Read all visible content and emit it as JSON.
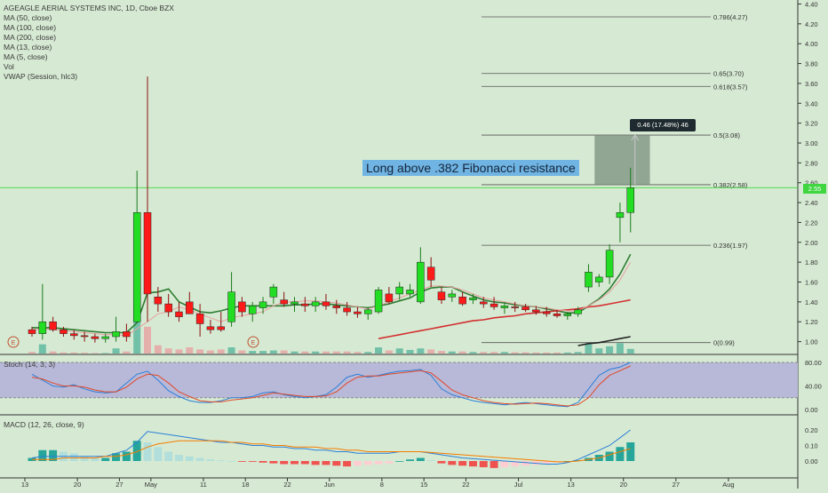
{
  "legend": {
    "title": "AGEAGLE AERIAL SYSTEMS INC, 1D, Cboe BZX",
    "lines": [
      "MA (50, close)",
      "MA (100, close)",
      "MA (200, close)",
      "MA (13, close)",
      "MA (5, close)",
      "Vol",
      "VWAP (Session, hlc3)"
    ]
  },
  "annotation": "Long above .382 Fibonacci resistance",
  "measure_label": "0.46 (17.48%) 46",
  "current_price_label": "2.55",
  "earnings_marker": "E",
  "stoch_label": "Stoch (14, 3, 3)",
  "macd_label": "MACD (12, 26, close, 9)",
  "colors": {
    "background": "#d6ead3",
    "up": "#22dd22",
    "down": "#ff1a1a",
    "ma_green": "#2e7d32",
    "ma_red": "#d32f2f",
    "stoch_band": "#b8b8d8"
  },
  "chart_data": [
    {
      "type": "candlestick",
      "title": "AGEAGLE AERIAL SYSTEMS INC, 1D, Cboe BZX",
      "y_ticks": [
        "4.40",
        "4.20",
        "4.00",
        "3.80",
        "3.60",
        "3.40",
        "3.20",
        "3.00",
        "2.80",
        "2.60",
        "2.40",
        "2.20",
        "2.00",
        "1.80",
        "1.60",
        "1.40",
        "1.20",
        "1.00"
      ],
      "ylim": [
        0.88,
        4.44
      ],
      "x_ticks": [
        "13",
        "20",
        "27",
        "May",
        "11",
        "18",
        "22",
        "Jun",
        "8",
        "15",
        "22",
        "Jul",
        "13",
        "20",
        "27",
        "Aug"
      ],
      "x_tick_index": [
        0,
        5,
        9,
        12,
        17,
        21,
        25,
        29,
        34,
        38,
        42,
        47,
        52,
        57,
        62,
        67
      ],
      "fibonacci": [
        {
          "label": "0.786(4.27)",
          "value": 4.27
        },
        {
          "label": "0.65(3.70)",
          "value": 3.7
        },
        {
          "label": "0.618(3.57)",
          "value": 3.57
        },
        {
          "label": "0.5(3.08)",
          "value": 3.08
        },
        {
          "label": "0.382(2.58)",
          "value": 2.58
        },
        {
          "label": "0.236(1.97)",
          "value": 1.97
        },
        {
          "label": "0(0.99)",
          "value": 0.99
        }
      ],
      "candles": [
        [
          1.12,
          1.15,
          1.05,
          1.08
        ],
        [
          1.08,
          1.58,
          1.02,
          1.2
        ],
        [
          1.2,
          1.25,
          1.1,
          1.12
        ],
        [
          1.12,
          1.15,
          1.05,
          1.08
        ],
        [
          1.08,
          1.12,
          1.02,
          1.06
        ],
        [
          1.06,
          1.1,
          1.0,
          1.05
        ],
        [
          1.05,
          1.08,
          0.99,
          1.03
        ],
        [
          1.03,
          1.08,
          0.99,
          1.05
        ],
        [
          1.05,
          1.25,
          1.0,
          1.1
        ],
        [
          1.1,
          1.18,
          1.0,
          1.05
        ],
        [
          1.2,
          2.72,
          1.2,
          2.3
        ],
        [
          2.3,
          3.67,
          1.2,
          1.48
        ],
        [
          1.45,
          1.55,
          1.3,
          1.38
        ],
        [
          1.38,
          1.48,
          1.25,
          1.3
        ],
        [
          1.3,
          1.4,
          1.2,
          1.25
        ],
        [
          1.4,
          1.5,
          1.3,
          1.28
        ],
        [
          1.28,
          1.38,
          1.05,
          1.18
        ],
        [
          1.15,
          1.22,
          1.08,
          1.12
        ],
        [
          1.15,
          1.3,
          1.1,
          1.12
        ],
        [
          1.2,
          1.7,
          1.15,
          1.5
        ],
        [
          1.4,
          1.45,
          1.25,
          1.3
        ],
        [
          1.28,
          1.4,
          1.2,
          1.36
        ],
        [
          1.34,
          1.45,
          1.28,
          1.4
        ],
        [
          1.45,
          1.58,
          1.38,
          1.55
        ],
        [
          1.42,
          1.5,
          1.35,
          1.38
        ],
        [
          1.38,
          1.45,
          1.3,
          1.4
        ],
        [
          1.38,
          1.45,
          1.3,
          1.36
        ],
        [
          1.36,
          1.45,
          1.3,
          1.4
        ],
        [
          1.4,
          1.48,
          1.32,
          1.36
        ],
        [
          1.36,
          1.42,
          1.28,
          1.34
        ],
        [
          1.34,
          1.4,
          1.26,
          1.3
        ],
        [
          1.3,
          1.35,
          1.24,
          1.28
        ],
        [
          1.28,
          1.35,
          1.22,
          1.32
        ],
        [
          1.3,
          1.55,
          1.28,
          1.52
        ],
        [
          1.48,
          1.55,
          1.38,
          1.4
        ],
        [
          1.48,
          1.6,
          1.42,
          1.55
        ],
        [
          1.48,
          1.58,
          1.45,
          1.52
        ],
        [
          1.4,
          1.95,
          1.38,
          1.8
        ],
        [
          1.75,
          1.85,
          1.55,
          1.62
        ],
        [
          1.5,
          1.55,
          1.38,
          1.42
        ],
        [
          1.45,
          1.52,
          1.4,
          1.48
        ],
        [
          1.45,
          1.5,
          1.36,
          1.38
        ],
        [
          1.42,
          1.48,
          1.38,
          1.44
        ],
        [
          1.4,
          1.45,
          1.34,
          1.38
        ],
        [
          1.38,
          1.45,
          1.32,
          1.35
        ],
        [
          1.34,
          1.4,
          1.28,
          1.36
        ],
        [
          1.35,
          1.4,
          1.3,
          1.34
        ],
        [
          1.35,
          1.38,
          1.3,
          1.32
        ],
        [
          1.32,
          1.36,
          1.27,
          1.3
        ],
        [
          1.3,
          1.35,
          1.25,
          1.28
        ],
        [
          1.28,
          1.32,
          1.24,
          1.26
        ],
        [
          1.26,
          1.3,
          1.22,
          1.28
        ],
        [
          1.28,
          1.35,
          1.25,
          1.32
        ],
        [
          1.55,
          1.78,
          1.5,
          1.7
        ],
        [
          1.6,
          1.68,
          1.55,
          1.65
        ],
        [
          1.65,
          1.98,
          1.58,
          1.92
        ],
        [
          2.25,
          2.4,
          2.0,
          2.3
        ],
        [
          2.3,
          2.75,
          2.1,
          2.55
        ]
      ],
      "volume": [
        0.15,
        0.9,
        0.2,
        0.1,
        0.1,
        0.08,
        0.05,
        0.05,
        0.5,
        0.2,
        5.0,
        2.6,
        0.8,
        0.5,
        0.4,
        0.6,
        0.4,
        0.3,
        0.4,
        0.6,
        0.3,
        0.25,
        0.25,
        0.3,
        0.3,
        0.2,
        0.2,
        0.2,
        0.2,
        0.2,
        0.2,
        0.15,
        0.15,
        0.6,
        0.3,
        0.5,
        0.35,
        0.5,
        0.4,
        0.25,
        0.2,
        0.2,
        0.15,
        0.15,
        0.15,
        0.15,
        0.12,
        0.12,
        0.1,
        0.1,
        0.1,
        0.1,
        0.15,
        1.0,
        0.5,
        0.7,
        1.0,
        0.45
      ],
      "earnings_marker_index": [
        1,
        19
      ],
      "series": [
        {
          "name": "MA (13, close)",
          "values": [
            1.14,
            1.14,
            1.14,
            1.13,
            1.12,
            1.11,
            1.1,
            1.09,
            1.09,
            1.09,
            1.19,
            1.49,
            1.5,
            1.53,
            1.4,
            1.35,
            1.3,
            1.29,
            1.31,
            1.34,
            1.36,
            1.36,
            1.36,
            1.36,
            1.36,
            1.37,
            1.37,
            1.38,
            1.38,
            1.37,
            1.36,
            1.35,
            1.34,
            1.36,
            1.38,
            1.41,
            1.44,
            1.5,
            1.54,
            1.55,
            1.55,
            1.5,
            1.46,
            1.42,
            1.4,
            1.39,
            1.37,
            1.36,
            1.35,
            1.33,
            1.31,
            1.29,
            1.29,
            1.36,
            1.43,
            1.53,
            1.68,
            1.88
          ]
        },
        {
          "name": "MA (50, close)",
          "values": [
            null,
            null,
            null,
            null,
            null,
            null,
            null,
            null,
            null,
            null,
            null,
            null,
            null,
            null,
            null,
            null,
            null,
            null,
            null,
            null,
            null,
            null,
            null,
            null,
            null,
            null,
            null,
            null,
            null,
            null,
            null,
            null,
            null,
            1.03,
            1.05,
            1.07,
            1.09,
            1.11,
            1.13,
            1.15,
            1.17,
            1.19,
            1.21,
            1.22,
            1.24,
            1.25,
            1.26,
            1.28,
            1.29,
            1.3,
            1.31,
            1.32,
            1.33,
            1.35,
            1.36,
            1.38,
            1.4,
            1.42
          ]
        },
        {
          "name": "MA (100, close)",
          "values": [
            null,
            null,
            null,
            null,
            null,
            null,
            null,
            null,
            null,
            null,
            null,
            null,
            null,
            null,
            null,
            null,
            null,
            null,
            null,
            null,
            null,
            null,
            null,
            null,
            null,
            null,
            null,
            null,
            null,
            null,
            null,
            null,
            null,
            null,
            null,
            null,
            null,
            null,
            null,
            null,
            null,
            null,
            null,
            null,
            null,
            null,
            null,
            null,
            null,
            null,
            null,
            null,
            0.96,
            0.98,
            0.99,
            1.01,
            1.03,
            1.05
          ]
        },
        {
          "name": "MA (5, close)",
          "values": [
            1.12,
            1.13,
            1.12,
            1.11,
            1.1,
            1.09,
            1.08,
            1.07,
            1.07,
            1.06,
            1.13,
            1.2,
            1.28,
            1.3,
            1.35,
            1.32,
            1.28,
            1.24,
            1.2,
            1.24,
            1.26,
            1.28,
            1.3,
            1.36,
            1.4,
            1.4,
            1.41,
            1.41,
            1.4,
            1.39,
            1.37,
            1.35,
            1.33,
            1.36,
            1.4,
            1.44,
            1.48,
            1.52,
            1.56,
            1.56,
            1.55,
            1.52,
            1.48,
            1.44,
            1.42,
            1.4,
            1.38,
            1.36,
            1.35,
            1.34,
            1.32,
            1.31,
            1.31,
            1.36,
            1.42,
            1.5,
            1.62,
            1.8
          ]
        }
      ]
    },
    {
      "type": "line",
      "title": "Stoch (14, 3, 3)",
      "y_ticks": [
        "80.00",
        "40.00",
        "0.00"
      ],
      "ylim": [
        0,
        80
      ],
      "band": [
        20,
        80
      ],
      "series": [
        {
          "name": "%K",
          "values": [
            60,
            50,
            40,
            38,
            42,
            35,
            30,
            28,
            30,
            45,
            60,
            65,
            50,
            32,
            22,
            15,
            12,
            12,
            15,
            20,
            20,
            22,
            28,
            30,
            25,
            22,
            20,
            22,
            25,
            38,
            55,
            60,
            55,
            58,
            62,
            65,
            66,
            68,
            58,
            35,
            25,
            20,
            15,
            12,
            10,
            8,
            10,
            12,
            10,
            8,
            6,
            5,
            12,
            35,
            58,
            68,
            72,
            80
          ]
        },
        {
          "name": "%D",
          "values": [
            55,
            52,
            45,
            40,
            40,
            38,
            33,
            30,
            30,
            38,
            52,
            60,
            58,
            45,
            30,
            22,
            15,
            13,
            13,
            16,
            18,
            20,
            24,
            28,
            26,
            24,
            22,
            22,
            23,
            30,
            45,
            55,
            57,
            57,
            60,
            62,
            64,
            66,
            62,
            48,
            33,
            25,
            20,
            15,
            12,
            10,
            9,
            10,
            11,
            10,
            8,
            6,
            8,
            20,
            42,
            58,
            66,
            74
          ]
        }
      ]
    },
    {
      "type": "bar",
      "title": "MACD (12, 26, close, 9)",
      "y_ticks": [
        "0.20",
        "0.10",
        "0.00"
      ],
      "ylim": [
        -0.06,
        0.26
      ],
      "histogram": [
        0.02,
        0.07,
        0.07,
        0.06,
        0.05,
        0.03,
        0.02,
        0.02,
        0.05,
        0.06,
        0.13,
        0.12,
        0.09,
        0.06,
        0.04,
        0.03,
        0.02,
        0.01,
        0.005,
        0.0,
        -0.005,
        -0.005,
        -0.01,
        -0.015,
        -0.02,
        -0.02,
        -0.02,
        -0.025,
        -0.025,
        -0.03,
        -0.035,
        -0.03,
        -0.025,
        -0.02,
        -0.015,
        0.0,
        0.01,
        0.02,
        0.005,
        -0.015,
        -0.025,
        -0.03,
        -0.035,
        -0.04,
        -0.045,
        -0.04,
        -0.035,
        -0.03,
        -0.025,
        -0.02,
        -0.01,
        0.0,
        0.005,
        0.02,
        0.04,
        0.06,
        0.09,
        0.12
      ],
      "series": [
        {
          "name": "MACD",
          "values": [
            0.02,
            0.03,
            0.03,
            0.03,
            0.03,
            0.03,
            0.03,
            0.03,
            0.05,
            0.07,
            0.12,
            0.19,
            0.18,
            0.17,
            0.16,
            0.15,
            0.14,
            0.13,
            0.12,
            0.12,
            0.11,
            0.1,
            0.1,
            0.09,
            0.09,
            0.08,
            0.08,
            0.07,
            0.07,
            0.06,
            0.06,
            0.05,
            0.05,
            0.05,
            0.05,
            0.06,
            0.06,
            0.06,
            0.05,
            0.04,
            0.03,
            0.02,
            0.015,
            0.01,
            0.005,
            0.0,
            -0.005,
            -0.01,
            -0.015,
            -0.02,
            -0.02,
            -0.01,
            0.01,
            0.04,
            0.07,
            0.1,
            0.15,
            0.2
          ]
        },
        {
          "name": "Signal",
          "values": [
            0.01,
            0.01,
            0.01,
            0.02,
            0.02,
            0.02,
            0.02,
            0.03,
            0.03,
            0.04,
            0.06,
            0.09,
            0.11,
            0.12,
            0.13,
            0.13,
            0.13,
            0.13,
            0.13,
            0.12,
            0.12,
            0.11,
            0.11,
            0.1,
            0.1,
            0.09,
            0.09,
            0.09,
            0.08,
            0.08,
            0.07,
            0.07,
            0.06,
            0.06,
            0.06,
            0.06,
            0.06,
            0.06,
            0.055,
            0.05,
            0.045,
            0.04,
            0.035,
            0.03,
            0.025,
            0.02,
            0.015,
            0.01,
            0.005,
            0.0,
            -0.005,
            -0.005,
            0.0,
            0.01,
            0.02,
            0.04,
            0.06,
            0.08
          ]
        }
      ]
    }
  ]
}
